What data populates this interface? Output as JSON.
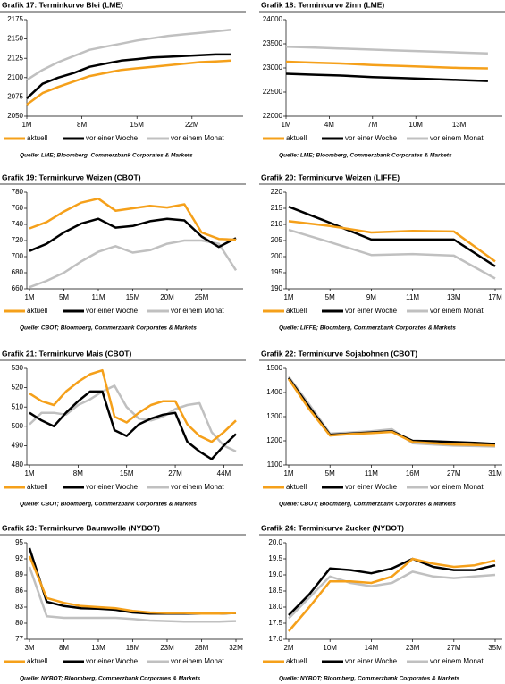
{
  "chart_data": [
    {
      "type": "line",
      "title": "Grafik 17: Terminkurve Blei (LME)",
      "source": "Quelle: LME; Bloomberg, Commerzbank Corporates & Markets",
      "x": [
        1,
        3,
        5,
        7,
        9,
        11,
        13,
        15,
        17,
        19,
        21,
        23,
        25,
        27
      ],
      "xlim": [
        1,
        28.5
      ],
      "xticks": [
        {
          "value": 1,
          "label": "1M"
        },
        {
          "value": 8,
          "label": "8M"
        },
        {
          "value": 15,
          "label": "15M"
        },
        {
          "value": 22,
          "label": "22M"
        }
      ],
      "ylim": [
        2050,
        2175
      ],
      "yticks": [
        2050,
        2075,
        2100,
        2125,
        2150,
        2175
      ],
      "series": [
        {
          "name": "aktuell",
          "color": "#f5a01a",
          "values": [
            2065,
            2080,
            2088,
            2095,
            2102,
            2106,
            2110,
            2112,
            2114,
            2116,
            2118,
            2120,
            2121,
            2122
          ]
        },
        {
          "name": "vor einer Woche",
          "color": "#000000",
          "values": [
            2073,
            2092,
            2100,
            2106,
            2114,
            2118,
            2122,
            2124,
            2126,
            2127,
            2128,
            2129,
            2130,
            2130
          ]
        },
        {
          "name": "vor einem Monat",
          "color": "#c0c0c0",
          "values": [
            2097,
            2110,
            2120,
            2128,
            2136,
            2140,
            2144,
            2148,
            2151,
            2154,
            2156,
            2158,
            2160,
            2162
          ]
        }
      ]
    },
    {
      "type": "line",
      "title": "Grafik 18: Terminkurve Zinn (LME)",
      "source": "Quelle: LME; Bloomberg, Commerzbank Corporates & Markets",
      "x": [
        1,
        3,
        5,
        7,
        9,
        11,
        13,
        15
      ],
      "xlim": [
        1,
        16
      ],
      "xticks": [
        {
          "value": 1,
          "label": "1M"
        },
        {
          "value": 4,
          "label": "4M"
        },
        {
          "value": 7,
          "label": "7M"
        },
        {
          "value": 10,
          "label": "10M"
        },
        {
          "value": 13,
          "label": "13M"
        }
      ],
      "ylim": [
        22000,
        24000
      ],
      "yticks": [
        22000,
        22500,
        23000,
        23500,
        24000
      ],
      "series": [
        {
          "name": "aktuell",
          "color": "#f5a01a",
          "values": [
            23130,
            23110,
            23090,
            23060,
            23040,
            23020,
            23000,
            22990
          ]
        },
        {
          "name": "vor einer Woche",
          "color": "#000000",
          "values": [
            22880,
            22860,
            22840,
            22810,
            22790,
            22770,
            22750,
            22730
          ]
        },
        {
          "name": "vor einem Monat",
          "color": "#c0c0c0",
          "values": [
            23440,
            23420,
            23400,
            23380,
            23360,
            23340,
            23320,
            23300
          ]
        }
      ]
    },
    {
      "type": "line",
      "title": "Grafik 19: Terminkurve Weizen (CBOT)",
      "source": "Quelle: CBOT; Bloomberg, Commerzbank Corporates & Markets",
      "categories": [
        "1M",
        null,
        "5M",
        null,
        "11M",
        null,
        "15M",
        null,
        "20M",
        null,
        "25M",
        null,
        null
      ],
      "ylim": [
        660,
        780
      ],
      "yticks": [
        660,
        680,
        700,
        720,
        740,
        760,
        780
      ],
      "series": [
        {
          "name": "aktuell",
          "color": "#f5a01a",
          "values": [
            735,
            743,
            756,
            767,
            772,
            757,
            760,
            763,
            761,
            765,
            730,
            722,
            721
          ]
        },
        {
          "name": "vor einer Woche",
          "color": "#000000",
          "values": [
            707,
            716,
            730,
            741,
            747,
            736,
            738,
            744,
            747,
            745,
            725,
            712,
            723
          ]
        },
        {
          "name": "vor einem Monat",
          "color": "#c0c0c0",
          "values": [
            662,
            670,
            680,
            694,
            706,
            713,
            705,
            708,
            716,
            720,
            720,
            716,
            683
          ]
        }
      ]
    },
    {
      "type": "line",
      "title": "Grafik 20: Terminkurve Weizen (LIFFE)",
      "source": "Quelle: LIFFE; Bloomberg, Commerzbank Corporates & Markets",
      "categories": [
        "1M",
        "5M",
        "9M",
        "11M",
        "13M",
        "17M"
      ],
      "ylim": [
        190,
        220
      ],
      "yticks": [
        190,
        195,
        200,
        205,
        210,
        215,
        220
      ],
      "series": [
        {
          "name": "aktuell",
          "color": "#f5a01a",
          "values": [
            211,
            209.5,
            207.5,
            208,
            207.8,
            198.5
          ]
        },
        {
          "name": "vor einer Woche",
          "color": "#000000",
          "values": [
            215.5,
            210.5,
            205.3,
            205.3,
            205.3,
            197
          ]
        },
        {
          "name": "vor einem Monat",
          "color": "#c0c0c0",
          "values": [
            208.3,
            204.5,
            200.5,
            200.8,
            200.3,
            193.2
          ]
        }
      ]
    },
    {
      "type": "line",
      "title": "Grafik 21: Terminkurve Mais (CBOT)",
      "source": "Quelle: CBOT; Bloomberg, Commerzbank Corporates & Markets",
      "categories": [
        "1M",
        null,
        null,
        null,
        "8M",
        null,
        null,
        null,
        "15M",
        null,
        null,
        null,
        "27M",
        null,
        null,
        null,
        "44M",
        null
      ],
      "ylim": [
        480,
        530
      ],
      "yticks": [
        480,
        490,
        500,
        510,
        520,
        530
      ],
      "series": [
        {
          "name": "aktuell",
          "color": "#f5a01a",
          "values": [
            517,
            513,
            511,
            518,
            523,
            527,
            529,
            505,
            502,
            507,
            511,
            513,
            513,
            501,
            495,
            492,
            497,
            503
          ]
        },
        {
          "name": "vor einer Woche",
          "color": "#000000",
          "values": [
            507,
            503,
            500,
            507,
            513,
            518,
            518,
            498,
            495,
            501,
            504,
            506,
            507,
            492,
            487,
            483,
            490,
            496
          ]
        },
        {
          "name": "vor einem Monat",
          "color": "#c0c0c0",
          "values": [
            501,
            507,
            507,
            506,
            511,
            514,
            518,
            521,
            510,
            504,
            503,
            505,
            509,
            511,
            512,
            497,
            490,
            487
          ]
        }
      ]
    },
    {
      "type": "line",
      "title": "Grafik 22: Terminkurve Sojabohnen (CBOT)",
      "source": "Quelle: CBOT; Bloomberg, Commerzbank Corporates & Markets",
      "categories": [
        "1M",
        null,
        "5M",
        null,
        "11M",
        null,
        "16M",
        null,
        "27M",
        null,
        "31M"
      ],
      "ylim": [
        1100,
        1500
      ],
      "yticks": [
        1100,
        1200,
        1300,
        1400,
        1500
      ],
      "series": [
        {
          "name": "aktuell",
          "color": "#f5a01a",
          "values": [
            1455,
            1330,
            1222,
            1228,
            1232,
            1237,
            1195,
            1190,
            1185,
            1183,
            1180
          ]
        },
        {
          "name": "vor einer Woche",
          "color": "#000000",
          "values": [
            1460,
            1340,
            1225,
            1230,
            1235,
            1240,
            1200,
            1198,
            1195,
            1192,
            1187
          ]
        },
        {
          "name": "vor einem Monat",
          "color": "#c0c0c0",
          "values": [
            1465,
            1350,
            1230,
            1235,
            1240,
            1248,
            1190,
            1185,
            1180,
            1178,
            1176
          ]
        }
      ]
    },
    {
      "type": "line",
      "title": "Grafik 23: Terminkurve Baumwolle (NYBOT)",
      "source": "Quelle: NYBOT; Bloomberg, Commerzbank Corporates & Markets",
      "categories": [
        "3M",
        null,
        "8M",
        null,
        "13M",
        null,
        "18M",
        null,
        "23M",
        null,
        "28M",
        null,
        "32M"
      ],
      "ylim": [
        77,
        95
      ],
      "yticks": [
        77,
        80,
        83,
        86,
        89,
        92,
        95
      ],
      "series": [
        {
          "name": "aktuell",
          "color": "#f5a01a",
          "values": [
            92.5,
            84.7,
            83.8,
            83.2,
            83,
            82.8,
            82.3,
            82,
            81.9,
            81.9,
            81.8,
            81.8,
            81.9
          ]
        },
        {
          "name": "vor einer Woche",
          "color": "#000000",
          "values": [
            94,
            84,
            83.2,
            82.8,
            82.7,
            82.5,
            82,
            81.8,
            81.8,
            81.8,
            81.8,
            81.8,
            81.9
          ]
        },
        {
          "name": "vor einem Monat",
          "color": "#c0c0c0",
          "values": [
            90.5,
            81.3,
            81,
            81,
            81,
            81,
            80.8,
            80.5,
            80.4,
            80.3,
            80.3,
            80.3,
            80.4
          ]
        }
      ]
    },
    {
      "type": "line",
      "title": "Grafik 24: Terminkurve Zucker (NYBOT)",
      "source": "Quelle: NYBOT; Bloomberg, Commerzbank Corporates & Markets",
      "categories": [
        "2M",
        null,
        "10M",
        null,
        "14M",
        null,
        "23M",
        null,
        "27M",
        null,
        "35M"
      ],
      "ylim": [
        17,
        20
      ],
      "yticks": [
        {
          "value": 17,
          "label": "17.0"
        },
        {
          "value": 17.5,
          "label": "17.5"
        },
        {
          "value": 18,
          "label": "18.0"
        },
        {
          "value": 18.5,
          "label": "18.5"
        },
        {
          "value": 19,
          "label": "19.0"
        },
        {
          "value": 19.5,
          "label": "19.5"
        },
        {
          "value": 20,
          "label": "20.0"
        }
      ],
      "series": [
        {
          "name": "aktuell",
          "color": "#f5a01a",
          "values": [
            17.25,
            18.0,
            18.8,
            18.8,
            18.75,
            18.95,
            19.5,
            19.35,
            19.25,
            19.3,
            19.45
          ]
        },
        {
          "name": "vor einer Woche",
          "color": "#000000",
          "values": [
            17.75,
            18.4,
            19.2,
            19.15,
            19.05,
            19.2,
            19.5,
            19.25,
            19.15,
            19.15,
            19.3
          ]
        },
        {
          "name": "vor einem Monat",
          "color": "#c0c0c0",
          "values": [
            17.65,
            18.3,
            18.95,
            18.75,
            18.65,
            18.75,
            19.1,
            18.95,
            18.9,
            18.95,
            19.0
          ]
        }
      ]
    }
  ]
}
